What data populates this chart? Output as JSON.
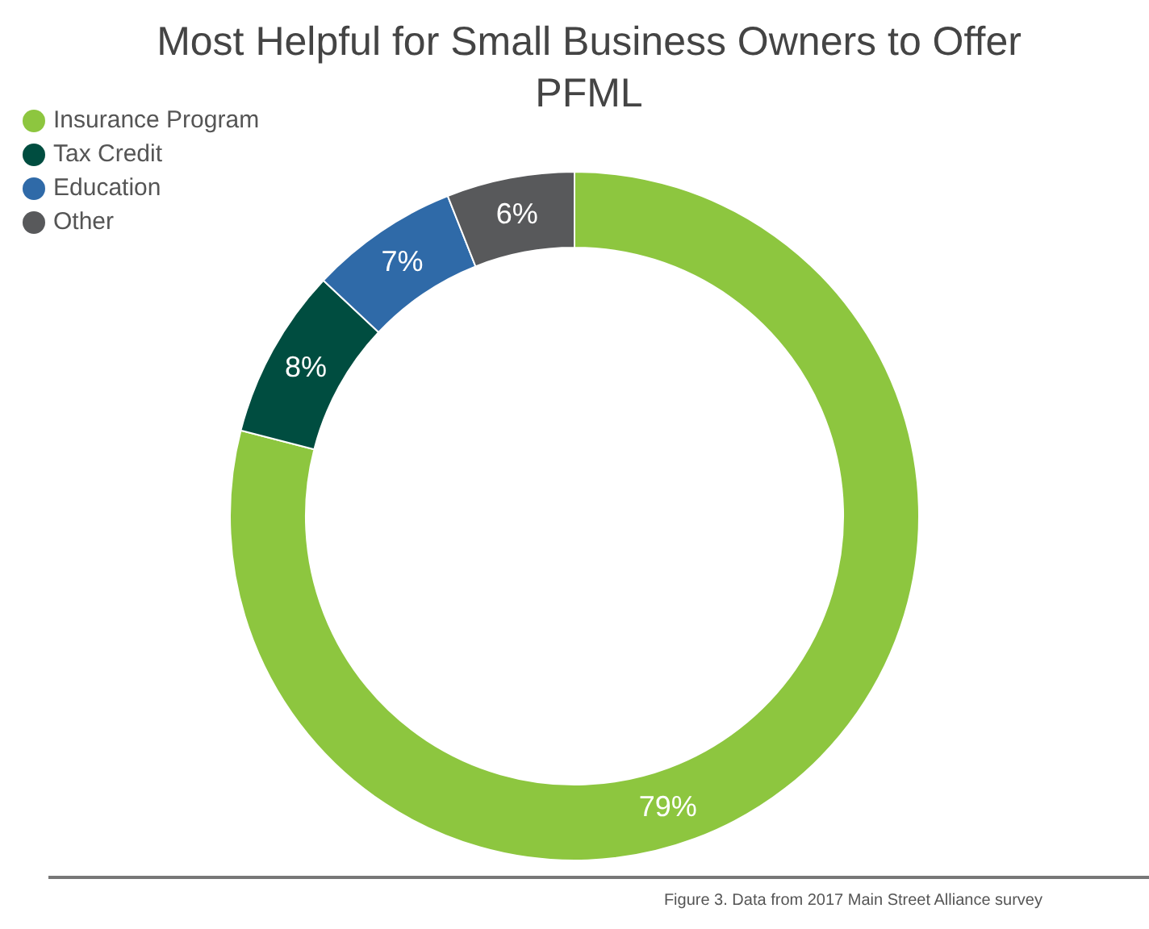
{
  "chart_data": {
    "type": "donut",
    "title": "Most Helpful for Small Business Owners to Offer PFML",
    "categories": [
      "Insurance Program",
      "Tax Credit",
      "Education",
      "Other"
    ],
    "values": [
      79,
      8,
      7,
      6
    ],
    "colors": [
      "#8dc63f",
      "#004d40",
      "#2f6aa8",
      "#58595b"
    ],
    "value_labels": [
      "79%",
      "8%",
      "7%",
      "6%"
    ],
    "legend": "top left",
    "annotations": [
      "Figure 3. Data from 2017 Main Street Alliance survey"
    ]
  }
}
